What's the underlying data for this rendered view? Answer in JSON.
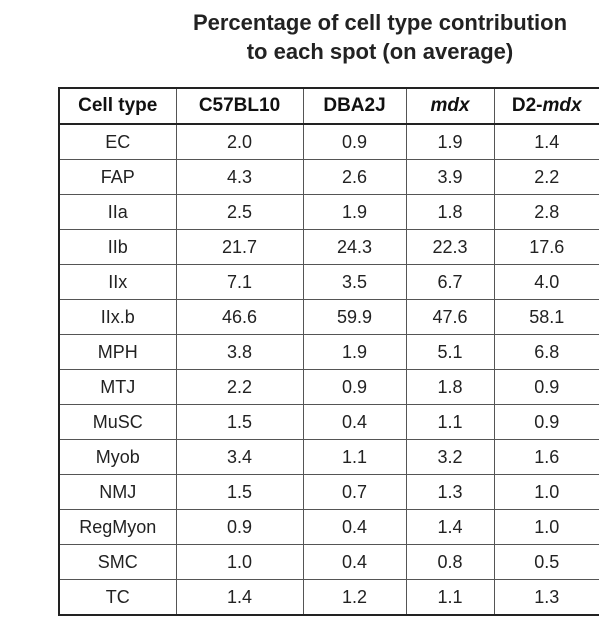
{
  "title": {
    "line1": "Percentage of cell type contribution",
    "line2": "to each spot (on average)"
  },
  "table": {
    "headers": [
      {
        "prefix": "Cell type",
        "italic": ""
      },
      {
        "prefix": "C57BL10",
        "italic": ""
      },
      {
        "prefix": "DBA2J",
        "italic": ""
      },
      {
        "prefix": "",
        "italic": "mdx"
      },
      {
        "prefix": "D2-",
        "italic": "mdx"
      }
    ],
    "rows": [
      [
        "EC",
        "2.0",
        "0.9",
        "1.9",
        "1.4"
      ],
      [
        "FAP",
        "4.3",
        "2.6",
        "3.9",
        "2.2"
      ],
      [
        "IIa",
        "2.5",
        "1.9",
        "1.8",
        "2.8"
      ],
      [
        "IIb",
        "21.7",
        "24.3",
        "22.3",
        "17.6"
      ],
      [
        "IIx",
        "7.1",
        "3.5",
        "6.7",
        "4.0"
      ],
      [
        "IIx.b",
        "46.6",
        "59.9",
        "47.6",
        "58.1"
      ],
      [
        "MPH",
        "3.8",
        "1.9",
        "5.1",
        "6.8"
      ],
      [
        "MTJ",
        "2.2",
        "0.9",
        "1.8",
        "0.9"
      ],
      [
        "MuSC",
        "1.5",
        "0.4",
        "1.1",
        "0.9"
      ],
      [
        "Myob",
        "3.4",
        "1.1",
        "3.2",
        "1.6"
      ],
      [
        "NMJ",
        "1.5",
        "0.7",
        "1.3",
        "1.0"
      ],
      [
        "RegMyon",
        "0.9",
        "0.4",
        "1.4",
        "1.0"
      ],
      [
        "SMC",
        "1.0",
        "0.4",
        "0.8",
        "0.5"
      ],
      [
        "TC",
        "1.4",
        "1.2",
        "1.1",
        "1.3"
      ]
    ]
  }
}
